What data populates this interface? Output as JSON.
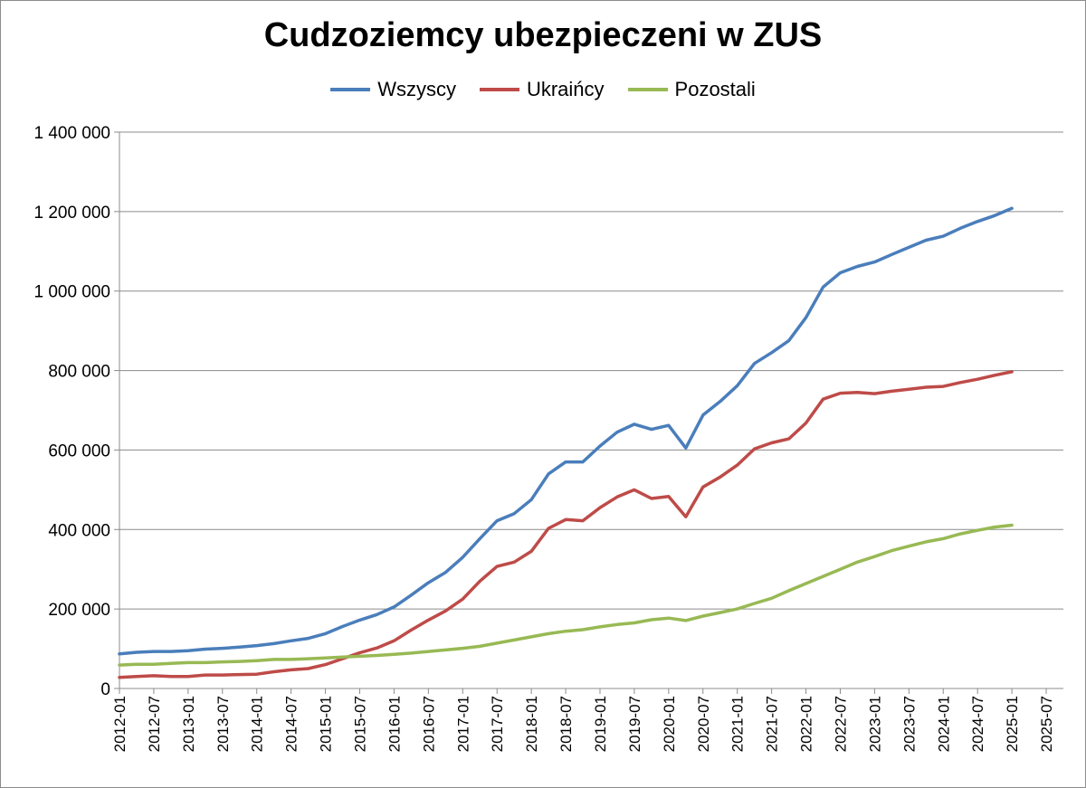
{
  "chart_data": {
    "type": "line",
    "title": "Cudzoziemcy ubezpieczeni w ZUS",
    "xlabel": "",
    "ylabel": "",
    "ylim": [
      0,
      1400000
    ],
    "y_ticks": [
      "0",
      "200 000",
      "400 000",
      "600 000",
      "800 000",
      "1 000 000",
      "1 200 000",
      "1 400 000"
    ],
    "x_ticks": [
      "2012-01",
      "2012-07",
      "2013-01",
      "2013-07",
      "2014-01",
      "2014-07",
      "2015-01",
      "2015-07",
      "2016-01",
      "2016-07",
      "2017-01",
      "2017-07",
      "2018-01",
      "2018-07",
      "2019-01",
      "2019-07",
      "2020-01",
      "2020-07",
      "2021-01",
      "2021-07",
      "2022-01",
      "2022-07",
      "2023-01",
      "2023-07",
      "2024-01",
      "2024-07",
      "2025-01",
      "2025-07"
    ],
    "legend_position": "top",
    "grid": true,
    "x": [
      "2012-01",
      "2012-04",
      "2012-07",
      "2012-10",
      "2013-01",
      "2013-04",
      "2013-07",
      "2013-10",
      "2014-01",
      "2014-04",
      "2014-07",
      "2014-10",
      "2015-01",
      "2015-04",
      "2015-07",
      "2015-10",
      "2016-01",
      "2016-04",
      "2016-07",
      "2016-10",
      "2017-01",
      "2017-04",
      "2017-07",
      "2017-10",
      "2018-01",
      "2018-04",
      "2018-07",
      "2018-10",
      "2019-01",
      "2019-04",
      "2019-07",
      "2019-10",
      "2020-01",
      "2020-04",
      "2020-07",
      "2020-10",
      "2021-01",
      "2021-04",
      "2021-07",
      "2021-10",
      "2022-01",
      "2022-04",
      "2022-07",
      "2022-10",
      "2023-01",
      "2023-04",
      "2023-07",
      "2023-10",
      "2024-01",
      "2024-04",
      "2024-07",
      "2024-10",
      "2025-01"
    ],
    "series": [
      {
        "name": "Wszyscy",
        "color": "#4a7ebb",
        "values": [
          87000,
          91000,
          93000,
          93000,
          95000,
          99000,
          101000,
          104000,
          108000,
          113000,
          120000,
          126000,
          138000,
          156000,
          172000,
          186000,
          205000,
          235000,
          266000,
          292000,
          330000,
          377000,
          422000,
          440000,
          475000,
          540000,
          570000,
          570000,
          610000,
          645000,
          665000,
          652000,
          662000,
          605000,
          688000,
          722000,
          762000,
          818000,
          845000,
          875000,
          933000,
          1010000,
          1046000,
          1062000,
          1073000,
          1092000,
          1110000,
          1128000,
          1138000,
          1158000,
          1175000,
          1190000,
          1208000
        ]
      },
      {
        "name": "Ukraińcy",
        "color": "#be4b48",
        "values": [
          28000,
          30000,
          32000,
          30000,
          30000,
          34000,
          34000,
          35000,
          36000,
          42000,
          47000,
          50000,
          60000,
          75000,
          90000,
          102000,
          120000,
          147000,
          172000,
          195000,
          225000,
          270000,
          307000,
          318000,
          345000,
          403000,
          425000,
          422000,
          455000,
          482000,
          500000,
          478000,
          483000,
          432000,
          507000,
          532000,
          562000,
          603000,
          618000,
          628000,
          668000,
          728000,
          743000,
          745000,
          742000,
          748000,
          753000,
          758000,
          760000,
          770000,
          778000,
          788000,
          797000
        ]
      },
      {
        "name": "Pozostali",
        "color": "#98b954",
        "values": [
          59000,
          61000,
          61000,
          63000,
          65000,
          65000,
          67000,
          68000,
          70000,
          73000,
          73000,
          75000,
          77000,
          79000,
          81000,
          83000,
          86000,
          89000,
          93000,
          97000,
          101000,
          106000,
          114000,
          122000,
          130000,
          138000,
          144000,
          148000,
          155000,
          161000,
          165000,
          173000,
          177000,
          171000,
          182000,
          191000,
          200000,
          214000,
          227000,
          246000,
          264000,
          282000,
          300000,
          318000,
          332000,
          347000,
          358000,
          369000,
          377000,
          389000,
          398000,
          406000,
          411000
        ]
      }
    ]
  }
}
